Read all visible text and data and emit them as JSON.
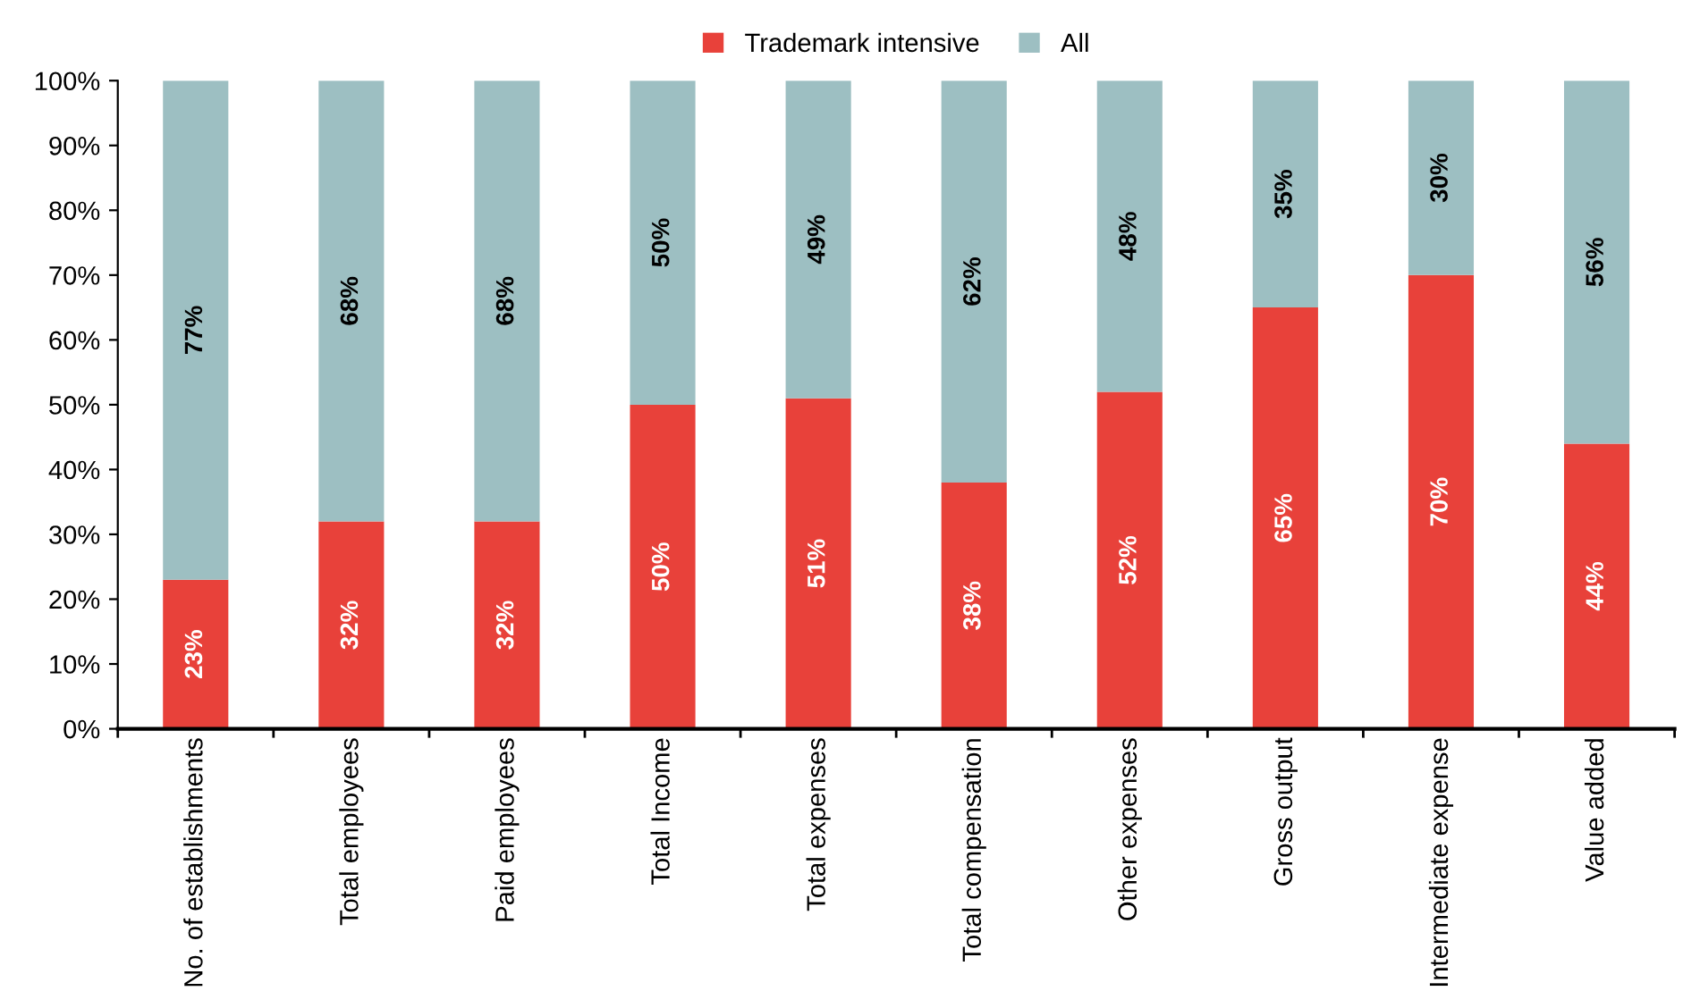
{
  "chart_data": {
    "type": "bar",
    "stacked": true,
    "categories": [
      "No. of establishments",
      "Total employees",
      "Paid employees",
      "Total Income",
      "Total expenses",
      "Total compensation",
      "Other expenses",
      "Gross output",
      "Intermediate expense",
      "Value added"
    ],
    "series": [
      {
        "name": "Trademark intensive",
        "color": "#e8413a",
        "values": [
          23,
          32,
          32,
          50,
          51,
          38,
          52,
          65,
          70,
          44
        ],
        "value_labels": [
          "23%",
          "32%",
          "32%",
          "50%",
          "51%",
          "38%",
          "52%",
          "65%",
          "70%",
          "44%"
        ]
      },
      {
        "name": "All",
        "color": "#9dbfc2",
        "values": [
          77,
          68,
          68,
          50,
          49,
          62,
          48,
          35,
          30,
          56
        ],
        "value_labels": [
          "77%",
          "68%",
          "68%",
          "50%",
          "49%",
          "62%",
          "48%",
          "35%",
          "30%",
          "56%"
        ]
      }
    ],
    "ylim": [
      0,
      100
    ],
    "yticks": [
      {
        "value": 0,
        "label": "0%"
      },
      {
        "value": 10,
        "label": "10%"
      },
      {
        "value": 20,
        "label": "20%"
      },
      {
        "value": 30,
        "label": "30%"
      },
      {
        "value": 40,
        "label": "40%"
      },
      {
        "value": 50,
        "label": "50%"
      },
      {
        "value": 60,
        "label": "60%"
      },
      {
        "value": 70,
        "label": "70%"
      },
      {
        "value": 80,
        "label": "80%"
      },
      {
        "value": 90,
        "label": "90%"
      },
      {
        "value": 100,
        "label": "100%"
      }
    ],
    "legend": "top",
    "grid": false
  }
}
